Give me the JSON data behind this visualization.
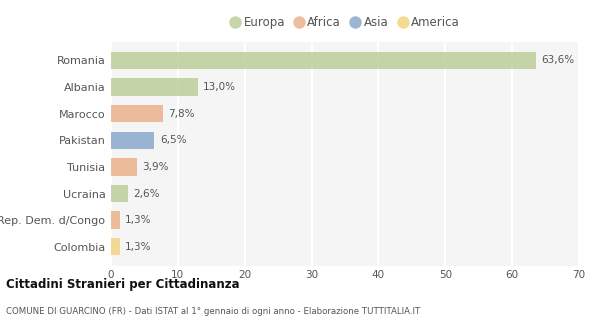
{
  "categories": [
    "Romania",
    "Albania",
    "Marocco",
    "Pakistan",
    "Tunisia",
    "Ucraina",
    "Rep. Dem. d/Congo",
    "Colombia"
  ],
  "values": [
    63.6,
    13.0,
    7.8,
    6.5,
    3.9,
    2.6,
    1.3,
    1.3
  ],
  "labels": [
    "63,6%",
    "13,0%",
    "7,8%",
    "6,5%",
    "3,9%",
    "2,6%",
    "1,3%",
    "1,3%"
  ],
  "colors": [
    "#b5c98e",
    "#b5c98e",
    "#e8a87c",
    "#7b9ec4",
    "#e8a87c",
    "#b5c98e",
    "#e8a87c",
    "#f0d070"
  ],
  "legend": [
    {
      "label": "Europa",
      "color": "#b5c98e"
    },
    {
      "label": "Africa",
      "color": "#e8a87c"
    },
    {
      "label": "Asia",
      "color": "#7b9ec4"
    },
    {
      "label": "America",
      "color": "#f0d070"
    }
  ],
  "xlim": [
    0,
    70
  ],
  "xticks": [
    0,
    10,
    20,
    30,
    40,
    50,
    60,
    70
  ],
  "title_bold": "Cittadini Stranieri per Cittadinanza",
  "subtitle": "COMUNE DI GUARCINO (FR) - Dati ISTAT al 1° gennaio di ogni anno - Elaborazione TUTTITALIA.IT",
  "bg_color": "#ffffff",
  "plot_bg_color": "#f5f5f5",
  "grid_color": "#ffffff",
  "bar_alpha": 0.75
}
